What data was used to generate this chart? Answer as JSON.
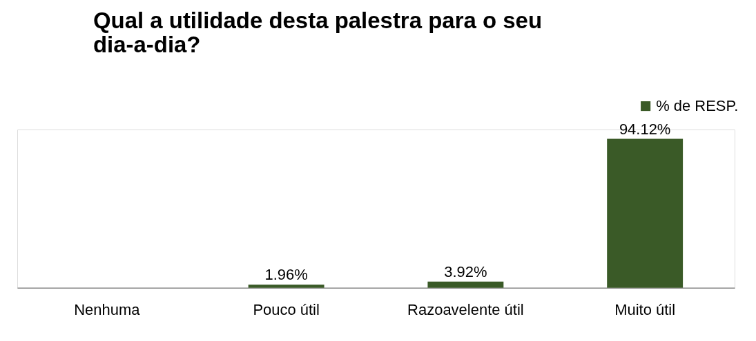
{
  "chart_data": {
    "type": "bar",
    "title": "Qual a utilidade desta palestra para o seu dia-a-dia?",
    "categories": [
      "Nenhuma",
      "Pouco útil",
      "Razoavelente útil",
      "Muito útil"
    ],
    "series": [
      {
        "name": "% de RESP.",
        "color": "#3a5a27",
        "values": [
          0,
          1.96,
          3.92,
          94.12
        ],
        "value_labels": [
          null,
          "1.96%",
          "3.92%",
          "94.12%"
        ]
      }
    ],
    "legend": "top right",
    "tick_labels": "x"
  }
}
